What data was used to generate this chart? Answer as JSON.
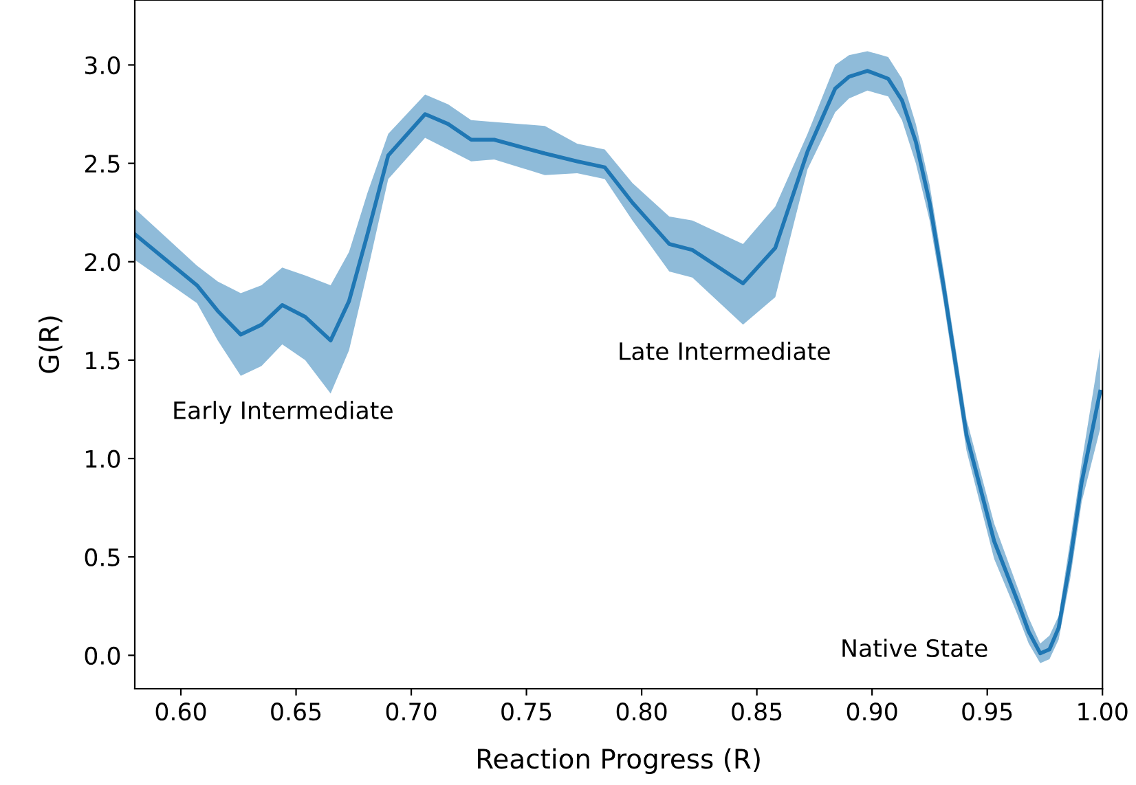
{
  "chart_data": {
    "type": "line",
    "xlabel": "Reaction Progress (R)",
    "ylabel": "G(R)",
    "xlim": [
      0.58,
      1.0
    ],
    "xticks": [
      {
        "value": 0.6,
        "label": "0.60"
      },
      {
        "value": 0.65,
        "label": "0.65"
      },
      {
        "value": 0.7,
        "label": "0.70"
      },
      {
        "value": 0.75,
        "label": "0.75"
      },
      {
        "value": 0.8,
        "label": "0.80"
      },
      {
        "value": 0.85,
        "label": "0.85"
      },
      {
        "value": 0.9,
        "label": "0.90"
      },
      {
        "value": 0.95,
        "label": "0.95"
      },
      {
        "value": 1.0,
        "label": "1.00"
      }
    ],
    "ylim": [
      -0.17,
      3.33
    ],
    "yticks": [
      {
        "value": 0,
        "label": "0.0"
      },
      {
        "value": 0.5,
        "label": "0.5"
      },
      {
        "value": 1,
        "label": "1.0"
      },
      {
        "value": 1.5,
        "label": "1.5"
      },
      {
        "value": 2,
        "label": "2.0"
      },
      {
        "value": 2.5,
        "label": "2.5"
      },
      {
        "value": 3,
        "label": "3.0"
      }
    ],
    "grid": false,
    "marker": "none",
    "line_style": "solid",
    "series": [
      {
        "color": "#1f77b4",
        "x": [
          0.58,
          0.607,
          0.616,
          0.626,
          0.635,
          0.644,
          0.654,
          0.665,
          0.673,
          0.681,
          0.69,
          0.706,
          0.716,
          0.726,
          0.736,
          0.758,
          0.772,
          0.784,
          0.796,
          0.812,
          0.822,
          0.844,
          0.858,
          0.872,
          0.884,
          0.89,
          0.898,
          0.907,
          0.913,
          0.919,
          0.925,
          0.931,
          0.941,
          0.953,
          0.963,
          0.968,
          0.973,
          0.977,
          0.981,
          0.986,
          0.991,
          0.999
        ],
        "values": [
          2.14,
          1.88,
          1.75,
          1.63,
          1.68,
          1.78,
          1.72,
          1.6,
          1.8,
          2.14,
          2.54,
          2.75,
          2.7,
          2.62,
          2.62,
          2.55,
          2.51,
          2.48,
          2.3,
          2.09,
          2.06,
          1.89,
          2.07,
          2.56,
          2.88,
          2.94,
          2.97,
          2.93,
          2.82,
          2.61,
          2.3,
          1.88,
          1.12,
          0.58,
          0.28,
          0.12,
          0.01,
          0.03,
          0.14,
          0.48,
          0.88,
          1.34
        ],
        "lower": [
          2.01,
          1.79,
          1.6,
          1.42,
          1.47,
          1.58,
          1.5,
          1.33,
          1.55,
          1.95,
          2.42,
          2.63,
          2.57,
          2.51,
          2.52,
          2.44,
          2.45,
          2.42,
          2.21,
          1.95,
          1.92,
          1.68,
          1.82,
          2.47,
          2.76,
          2.83,
          2.87,
          2.84,
          2.72,
          2.5,
          2.21,
          1.8,
          1.04,
          0.49,
          0.21,
          0.06,
          -0.04,
          -0.02,
          0.08,
          0.39,
          0.78,
          1.15
        ],
        "upper": [
          2.27,
          1.98,
          1.9,
          1.84,
          1.88,
          1.97,
          1.93,
          1.88,
          2.05,
          2.35,
          2.65,
          2.85,
          2.8,
          2.72,
          2.71,
          2.69,
          2.6,
          2.57,
          2.4,
          2.23,
          2.21,
          2.09,
          2.28,
          2.65,
          3.0,
          3.05,
          3.07,
          3.04,
          2.93,
          2.7,
          2.39,
          1.96,
          1.2,
          0.67,
          0.35,
          0.19,
          0.06,
          0.1,
          0.2,
          0.58,
          0.98,
          1.56
        ]
      }
    ],
    "annotations": [
      "Early Intermediate",
      "Late Intermediate",
      "Native State"
    ]
  }
}
